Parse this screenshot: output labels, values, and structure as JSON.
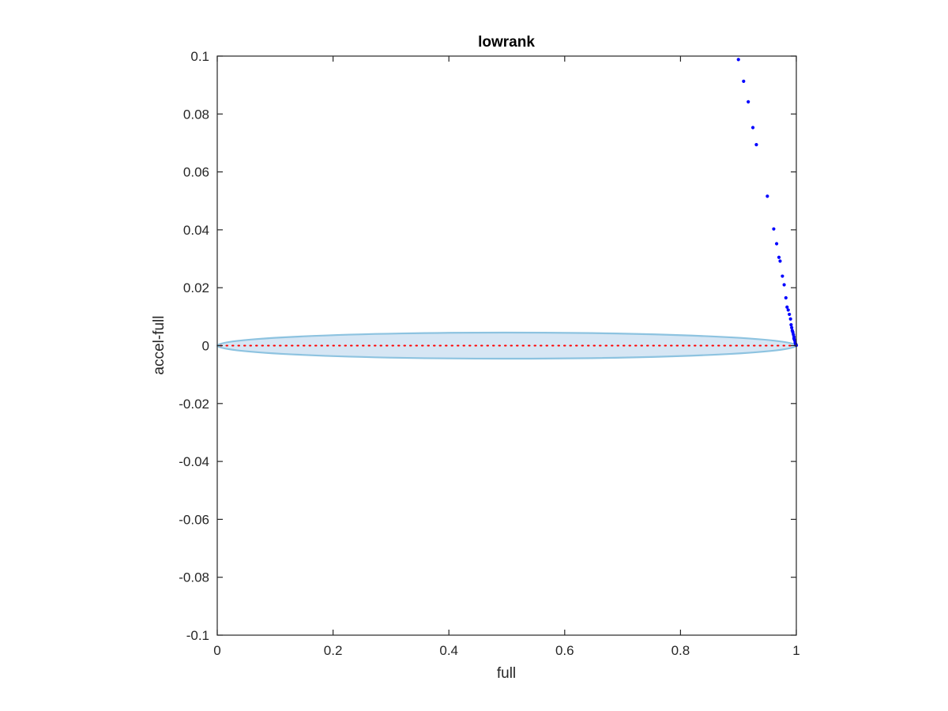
{
  "chart_data": {
    "type": "scatter",
    "title": "lowrank",
    "xlabel": "full",
    "ylabel": "accel-full",
    "xlim": [
      0,
      1
    ],
    "ylim": [
      -0.1,
      0.1
    ],
    "xticks": [
      0,
      0.2,
      0.4,
      0.6,
      0.8,
      1
    ],
    "xtick_labels": [
      "0",
      "0.2",
      "0.4",
      "0.6",
      "0.8",
      "1"
    ],
    "yticks": [
      -0.1,
      -0.08,
      -0.06,
      -0.04,
      -0.02,
      0,
      0.02,
      0.04,
      0.06,
      0.08,
      0.1
    ],
    "ytick_labels": [
      "-0.1",
      "-0.08",
      "-0.06",
      "-0.04",
      "-0.02",
      "0",
      "0.02",
      "0.04",
      "0.06",
      "0.08",
      "0.1"
    ],
    "grid": false,
    "colors": {
      "points": "#0000ff",
      "reference_line": "#ff0000",
      "ellipse_fill": "#d6e6f4",
      "ellipse_edge": "#8dc3e0",
      "axes": "#262626"
    },
    "reference_line": {
      "y": 0,
      "x_range": [
        0,
        1
      ],
      "style": "dotted"
    },
    "ellipse": {
      "center": [
        0.5,
        0
      ],
      "x_radius": 0.5,
      "y_radius": 0.0045
    },
    "series": [
      {
        "points": [
          [
            0.9,
            0.0988
          ],
          [
            0.909,
            0.0913
          ],
          [
            0.917,
            0.0842
          ],
          [
            0.925,
            0.0753
          ],
          [
            0.931,
            0.0694
          ],
          [
            0.95,
            0.0516
          ],
          [
            0.961,
            0.0403
          ],
          [
            0.966,
            0.0352
          ],
          [
            0.97,
            0.0305
          ],
          [
            0.972,
            0.0292
          ],
          [
            0.976,
            0.024
          ],
          [
            0.979,
            0.021
          ],
          [
            0.982,
            0.0165
          ],
          [
            0.984,
            0.0133
          ],
          [
            0.986,
            0.0123
          ],
          [
            0.988,
            0.0108
          ],
          [
            0.99,
            0.0092
          ],
          [
            0.991,
            0.0072
          ],
          [
            0.992,
            0.0062
          ],
          [
            0.993,
            0.0052
          ],
          [
            0.994,
            0.0046
          ],
          [
            0.995,
            0.0038
          ],
          [
            0.996,
            0.003
          ],
          [
            0.996,
            0.0024
          ],
          [
            0.997,
            0.0019
          ],
          [
            0.998,
            0.0014
          ],
          [
            0.998,
            0.001
          ],
          [
            0.999,
            0.0006
          ],
          [
            0.999,
            0.0003
          ],
          [
            1.0,
            0.0001
          ]
        ]
      }
    ]
  }
}
